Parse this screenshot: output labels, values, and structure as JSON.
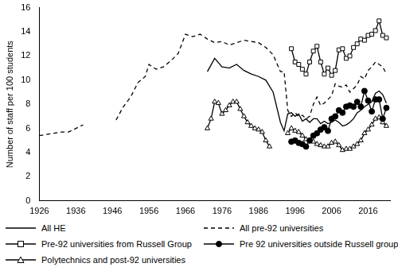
{
  "chart_data": {
    "type": "line",
    "y_label": "Number of staff per 100 students",
    "xlim": [
      1926,
      2022
    ],
    "xticks": [
      1926,
      1936,
      1946,
      1956,
      1966,
      1976,
      1986,
      1996,
      2006,
      2016
    ],
    "ylim": [
      0,
      16
    ],
    "yticks": [
      0,
      2,
      4,
      6,
      8,
      10,
      12,
      14,
      16
    ],
    "grid": false,
    "legend": "bottom",
    "series": [
      {
        "name": "All HE",
        "color": "#000000",
        "marker": "none",
        "line_style": "solid",
        "x": [
          1972,
          1974,
          1976,
          1978,
          1980,
          1982,
          1984,
          1986,
          1988,
          1990,
          1992,
          1993,
          1994,
          1995,
          1996,
          1997,
          1998,
          1999,
          2000,
          2001,
          2002,
          2003,
          2004,
          2005,
          2006,
          2007,
          2008,
          2009,
          2010,
          2011,
          2012,
          2013,
          2014,
          2015,
          2016,
          2017,
          2018,
          2019,
          2020,
          2021
        ],
        "values": [
          10.7,
          11.8,
          11.1,
          11.0,
          11.3,
          10.8,
          10.5,
          10.3,
          10.0,
          9.0,
          6.5,
          5.8,
          7.2,
          7.3,
          7.0,
          7.2,
          6.6,
          6.8,
          6.5,
          6.8,
          6.8,
          6.4,
          6.6,
          6.4,
          6.5,
          6.7,
          6.5,
          6.2,
          6.3,
          6.5,
          6.8,
          7.3,
          7.5,
          7.8,
          8.0,
          8.2,
          8.9,
          9.1,
          8.8,
          8.1
        ]
      },
      {
        "name": "All pre-92 universities",
        "color": "#000000",
        "marker": "none",
        "line_style": "dashed",
        "x": [
          1926,
          1928,
          1930,
          1932,
          1934,
          1936,
          1938,
          1942,
          1947,
          1949,
          1951,
          1953,
          1955,
          1956,
          1958,
          1960,
          1962,
          1964,
          1966,
          1968,
          1970,
          1972,
          1974,
          1976,
          1978,
          1980,
          1982,
          1984,
          1986,
          1988,
          1990,
          1992,
          1993,
          1994,
          1995,
          1996,
          1997,
          1998,
          1999,
          2000,
          2001,
          2002,
          2003,
          2004,
          2005,
          2006,
          2007,
          2008,
          2009,
          2010,
          2011,
          2012,
          2013,
          2014,
          2015,
          2016,
          2017,
          2018,
          2019,
          2020,
          2021
        ],
        "values": [
          5.4,
          5.5,
          5.6,
          5.7,
          5.7,
          6.0,
          6.3,
          null,
          6.7,
          7.8,
          8.6,
          9.8,
          10.3,
          11.3,
          10.9,
          11.1,
          11.6,
          12.2,
          13.8,
          13.6,
          13.8,
          13.4,
          13.1,
          13.2,
          12.9,
          13.1,
          13.3,
          13.2,
          13.1,
          12.7,
          12.1,
          10.7,
          10.7,
          7.5,
          7.0,
          7.3,
          7.0,
          7.1,
          6.8,
          7.0,
          8.0,
          8.6,
          7.9,
          8.1,
          8.4,
          8.7,
          9.7,
          9.5,
          9.4,
          9.6,
          9.0,
          9.3,
          9.6,
          10.3,
          10.1,
          10.8,
          11.1,
          11.5,
          11.3,
          11.1,
          10.5
        ]
      },
      {
        "name": "Pre-92 universities from Russell Group",
        "color": "#000000",
        "marker": "square",
        "line_style": "solid",
        "x": [
          1995,
          1996,
          1997,
          1998,
          1999,
          2000,
          2001,
          2002,
          2003,
          2004,
          2005,
          2006,
          2007,
          2008,
          2009,
          2010,
          2011,
          2012,
          2013,
          2014,
          2015,
          2016,
          2017,
          2018,
          2019,
          2020,
          2021
        ],
        "values": [
          12.6,
          11.5,
          11.3,
          10.9,
          10.5,
          11.5,
          12.4,
          12.8,
          11.5,
          10.5,
          11.0,
          10.4,
          10.8,
          12.5,
          12.6,
          11.8,
          12.0,
          12.7,
          13.0,
          13.4,
          13.3,
          13.7,
          13.8,
          14.1,
          14.9,
          13.7,
          13.5
        ]
      },
      {
        "name": "Pre 92 universities outside Russell group",
        "color": "#000000",
        "marker": "circle",
        "line_style": "solid",
        "x": [
          1995,
          1996,
          1997,
          1998,
          1999,
          2000,
          2001,
          2002,
          2003,
          2004,
          2005,
          2006,
          2007,
          2008,
          2009,
          2010,
          2011,
          2012,
          2013,
          2014,
          2015,
          2016,
          2017,
          2018,
          2019,
          2020,
          2021
        ],
        "values": [
          4.9,
          5.0,
          4.8,
          4.7,
          4.5,
          5.0,
          5.4,
          5.6,
          5.9,
          6.1,
          5.8,
          6.8,
          7.0,
          7.5,
          7.3,
          7.8,
          7.9,
          7.8,
          8.2,
          7.8,
          9.1,
          8.3,
          7.4,
          8.4,
          8.4,
          6.8,
          7.7
        ]
      },
      {
        "name": "Polytechnics and post-92 universities",
        "color": "#000000",
        "marker": "triangle",
        "line_style": "solid",
        "x": [
          1972,
          1973,
          1974,
          1975,
          1976,
          1977,
          1978,
          1979,
          1980,
          1981,
          1982,
          1983,
          1984,
          1985,
          1986,
          1987,
          1988,
          1989,
          1991,
          1994,
          1995,
          1996,
          1997,
          1998,
          1999,
          2000,
          2001,
          2002,
          2003,
          2004,
          2005,
          2006,
          2007,
          2008,
          2009,
          2010,
          2011,
          2012,
          2013,
          2014,
          2015,
          2016,
          2017,
          2018,
          2019,
          2020,
          2021
        ],
        "values": [
          6.0,
          6.8,
          8.2,
          8.1,
          7.2,
          7.5,
          7.9,
          8.2,
          8.2,
          7.6,
          7.0,
          6.5,
          6.2,
          6.0,
          5.9,
          5.7,
          5.0,
          4.5,
          null,
          5.6,
          6.0,
          5.8,
          5.7,
          5.4,
          5.1,
          5.0,
          4.9,
          4.7,
          4.6,
          4.5,
          4.5,
          4.8,
          4.9,
          4.6,
          4.2,
          4.3,
          4.3,
          4.5,
          4.7,
          5.0,
          5.6,
          5.9,
          6.3,
          6.8,
          6.9,
          6.5,
          6.2
        ]
      }
    ]
  }
}
